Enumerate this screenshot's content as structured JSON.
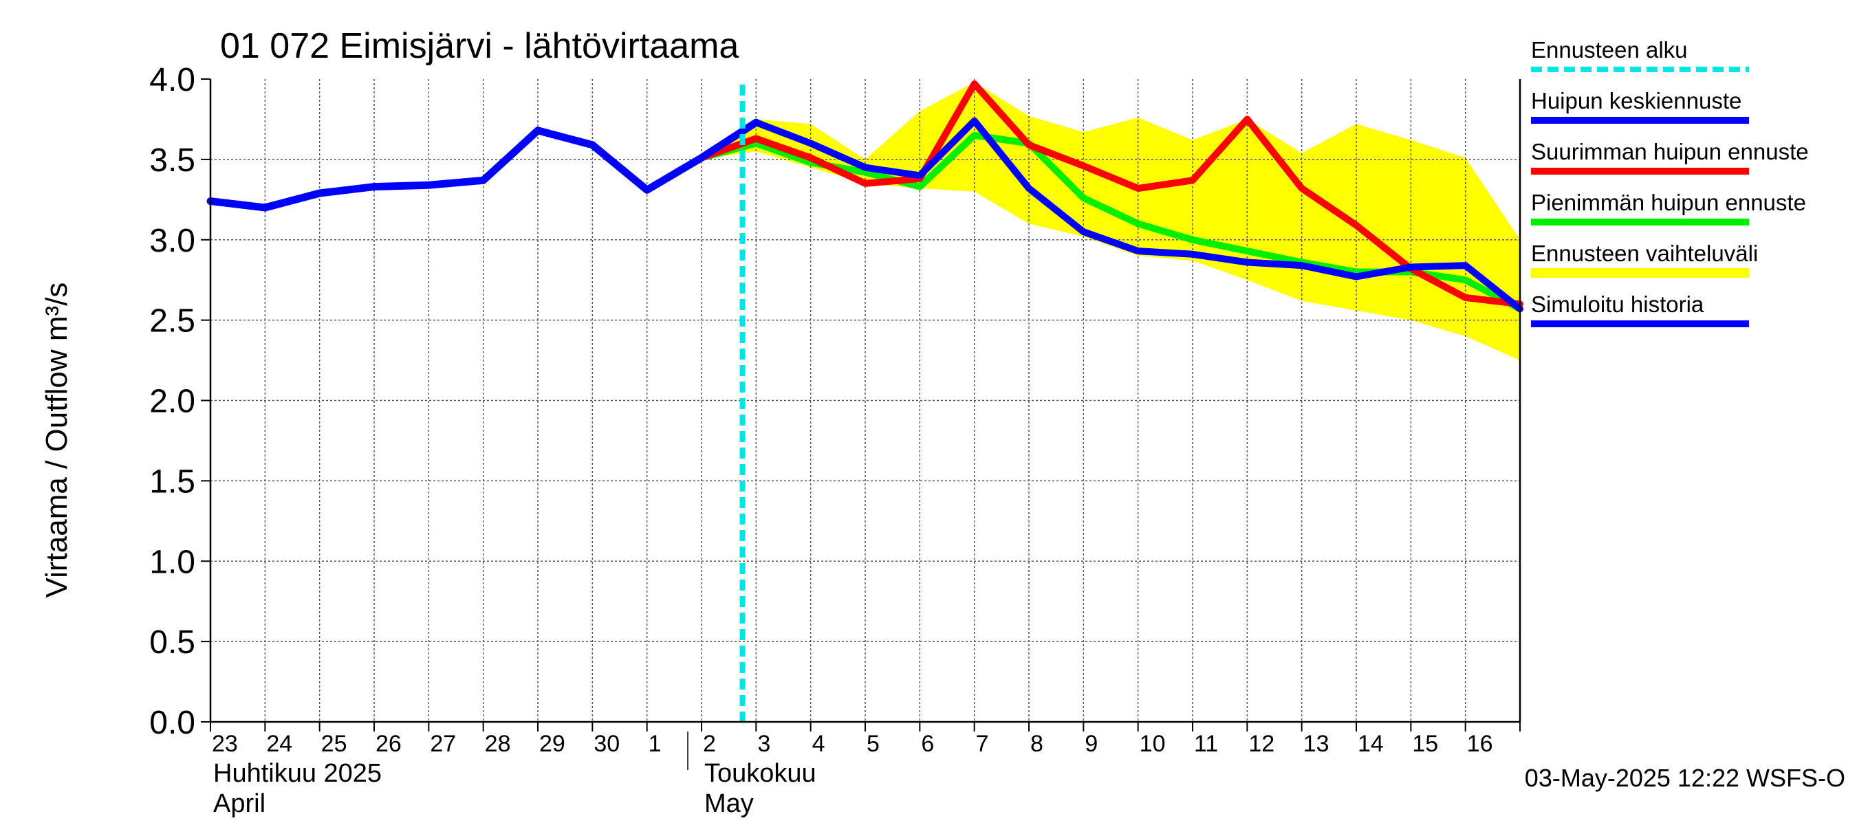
{
  "chart_data": {
    "type": "line",
    "title": "01 072 Eimisjärvi - lähtövirtaama",
    "ylabel": "Virtaama / Outflow    m³/s",
    "ylim": [
      0.0,
      4.0
    ],
    "y_ticks": [
      "0.0",
      "0.5",
      "1.0",
      "1.5",
      "2.0",
      "2.5",
      "3.0",
      "3.5",
      "4.0"
    ],
    "x_tick_labels": [
      "23",
      "24",
      "25",
      "26",
      "27",
      "28",
      "29",
      "30",
      "1",
      "2",
      "3",
      "4",
      "5",
      "6",
      "7",
      "8",
      "9",
      "10",
      "11",
      "12",
      "13",
      "14",
      "15",
      "16"
    ],
    "x_dates": [
      "2025-04-23",
      "2025-04-24",
      "2025-04-25",
      "2025-04-26",
      "2025-04-27",
      "2025-04-28",
      "2025-04-29",
      "2025-04-30",
      "2025-05-01",
      "2025-05-02",
      "2025-05-03",
      "2025-05-04",
      "2025-05-05",
      "2025-05-06",
      "2025-05-07",
      "2025-05-08",
      "2025-05-09",
      "2025-05-10",
      "2025-05-11",
      "2025-05-12",
      "2025-05-13",
      "2025-05-14",
      "2025-05-15",
      "2025-05-16",
      "2025-05-17"
    ],
    "x_range": [
      "2025-04-23",
      "2025-05-17"
    ],
    "month_labels": [
      {
        "fi": "Huhtikuu  2025",
        "en": "April",
        "start": "2025-04-23"
      },
      {
        "fi": "Toukokuu",
        "en": "May",
        "start": "2025-05-02"
      }
    ],
    "forecast_start": "2025-05-02 18:00",
    "grid": true,
    "legend_position": "right",
    "legend": [
      {
        "label": "Ennusteen alku",
        "color": "#00e5e5",
        "style": "dashed"
      },
      {
        "label": "Huipun keskiennuste",
        "color": "#0000ff",
        "style": "solid"
      },
      {
        "label": "Suurimman huipun ennuste",
        "color": "#ff0000",
        "style": "solid"
      },
      {
        "label": "Pienimmän huipun ennuste",
        "color": "#00ee00",
        "style": "solid"
      },
      {
        "label": "Ennusteen vaihteluväli",
        "color": "#ffff00",
        "style": "band"
      },
      {
        "label": "Simuloitu historia",
        "color": "#0000ff",
        "style": "solid"
      }
    ],
    "band": {
      "x": [
        "2025-05-02",
        "2025-05-03",
        "2025-05-04",
        "2025-05-05",
        "2025-05-06",
        "2025-05-07",
        "2025-05-08",
        "2025-05-09",
        "2025-05-10",
        "2025-05-11",
        "2025-05-12",
        "2025-05-13",
        "2025-05-14",
        "2025-05-15",
        "2025-05-16",
        "2025-05-17"
      ],
      "upper": [
        3.52,
        3.75,
        3.72,
        3.5,
        3.8,
        3.98,
        3.77,
        3.67,
        3.76,
        3.62,
        3.75,
        3.54,
        3.72,
        3.62,
        3.51,
        3.0
      ],
      "lower": [
        3.5,
        3.55,
        3.45,
        3.35,
        3.32,
        3.3,
        3.1,
        3.02,
        2.9,
        2.87,
        2.75,
        2.62,
        2.56,
        2.5,
        2.4,
        2.25
      ]
    },
    "series": [
      {
        "name": "Simuloitu historia",
        "color": "#0000ff",
        "x": [
          "2025-04-23",
          "2025-04-24",
          "2025-04-25",
          "2025-04-26",
          "2025-04-27",
          "2025-04-28",
          "2025-04-29",
          "2025-04-30",
          "2025-05-01",
          "2025-05-02",
          "2025-05-03"
        ],
        "y": [
          3.24,
          3.2,
          3.29,
          3.33,
          3.34,
          3.37,
          3.68,
          3.59,
          3.31,
          3.51,
          3.73
        ]
      },
      {
        "name": "Pienimmän huipun ennuste",
        "color": "#00ee00",
        "x": [
          "2025-05-02",
          "2025-05-03",
          "2025-05-04",
          "2025-05-05",
          "2025-05-06",
          "2025-05-07",
          "2025-05-08",
          "2025-05-09",
          "2025-05-10",
          "2025-05-11",
          "2025-05-12",
          "2025-05-13",
          "2025-05-14",
          "2025-05-15",
          "2025-05-16",
          "2025-05-17"
        ],
        "y": [
          3.51,
          3.6,
          3.48,
          3.42,
          3.33,
          3.65,
          3.6,
          3.26,
          3.1,
          3.0,
          2.93,
          2.86,
          2.8,
          2.8,
          2.75,
          2.57
        ]
      },
      {
        "name": "Suurimman huipun ennuste",
        "color": "#ff0000",
        "x": [
          "2025-05-02",
          "2025-05-03",
          "2025-05-04",
          "2025-05-05",
          "2025-05-06",
          "2025-05-07",
          "2025-05-08",
          "2025-05-09",
          "2025-05-10",
          "2025-05-11",
          "2025-05-12",
          "2025-05-13",
          "2025-05-14",
          "2025-05-15",
          "2025-05-16",
          "2025-05-17"
        ],
        "y": [
          3.51,
          3.63,
          3.51,
          3.35,
          3.38,
          3.97,
          3.59,
          3.46,
          3.32,
          3.37,
          3.75,
          3.32,
          3.09,
          2.82,
          2.64,
          2.6
        ]
      },
      {
        "name": "Huipun keskiennuste",
        "color": "#0000ff",
        "x": [
          "2025-05-02",
          "2025-05-03",
          "2025-05-04",
          "2025-05-05",
          "2025-05-06",
          "2025-05-07",
          "2025-05-08",
          "2025-05-09",
          "2025-05-10",
          "2025-05-11",
          "2025-05-12",
          "2025-05-13",
          "2025-05-14",
          "2025-05-15",
          "2025-05-16",
          "2025-05-17"
        ],
        "y": [
          3.51,
          3.73,
          3.6,
          3.45,
          3.4,
          3.74,
          3.32,
          3.05,
          2.93,
          2.91,
          2.86,
          2.84,
          2.77,
          2.83,
          2.84,
          2.57
        ]
      }
    ],
    "footer": "03-May-2025 12:22 WSFS-O"
  }
}
